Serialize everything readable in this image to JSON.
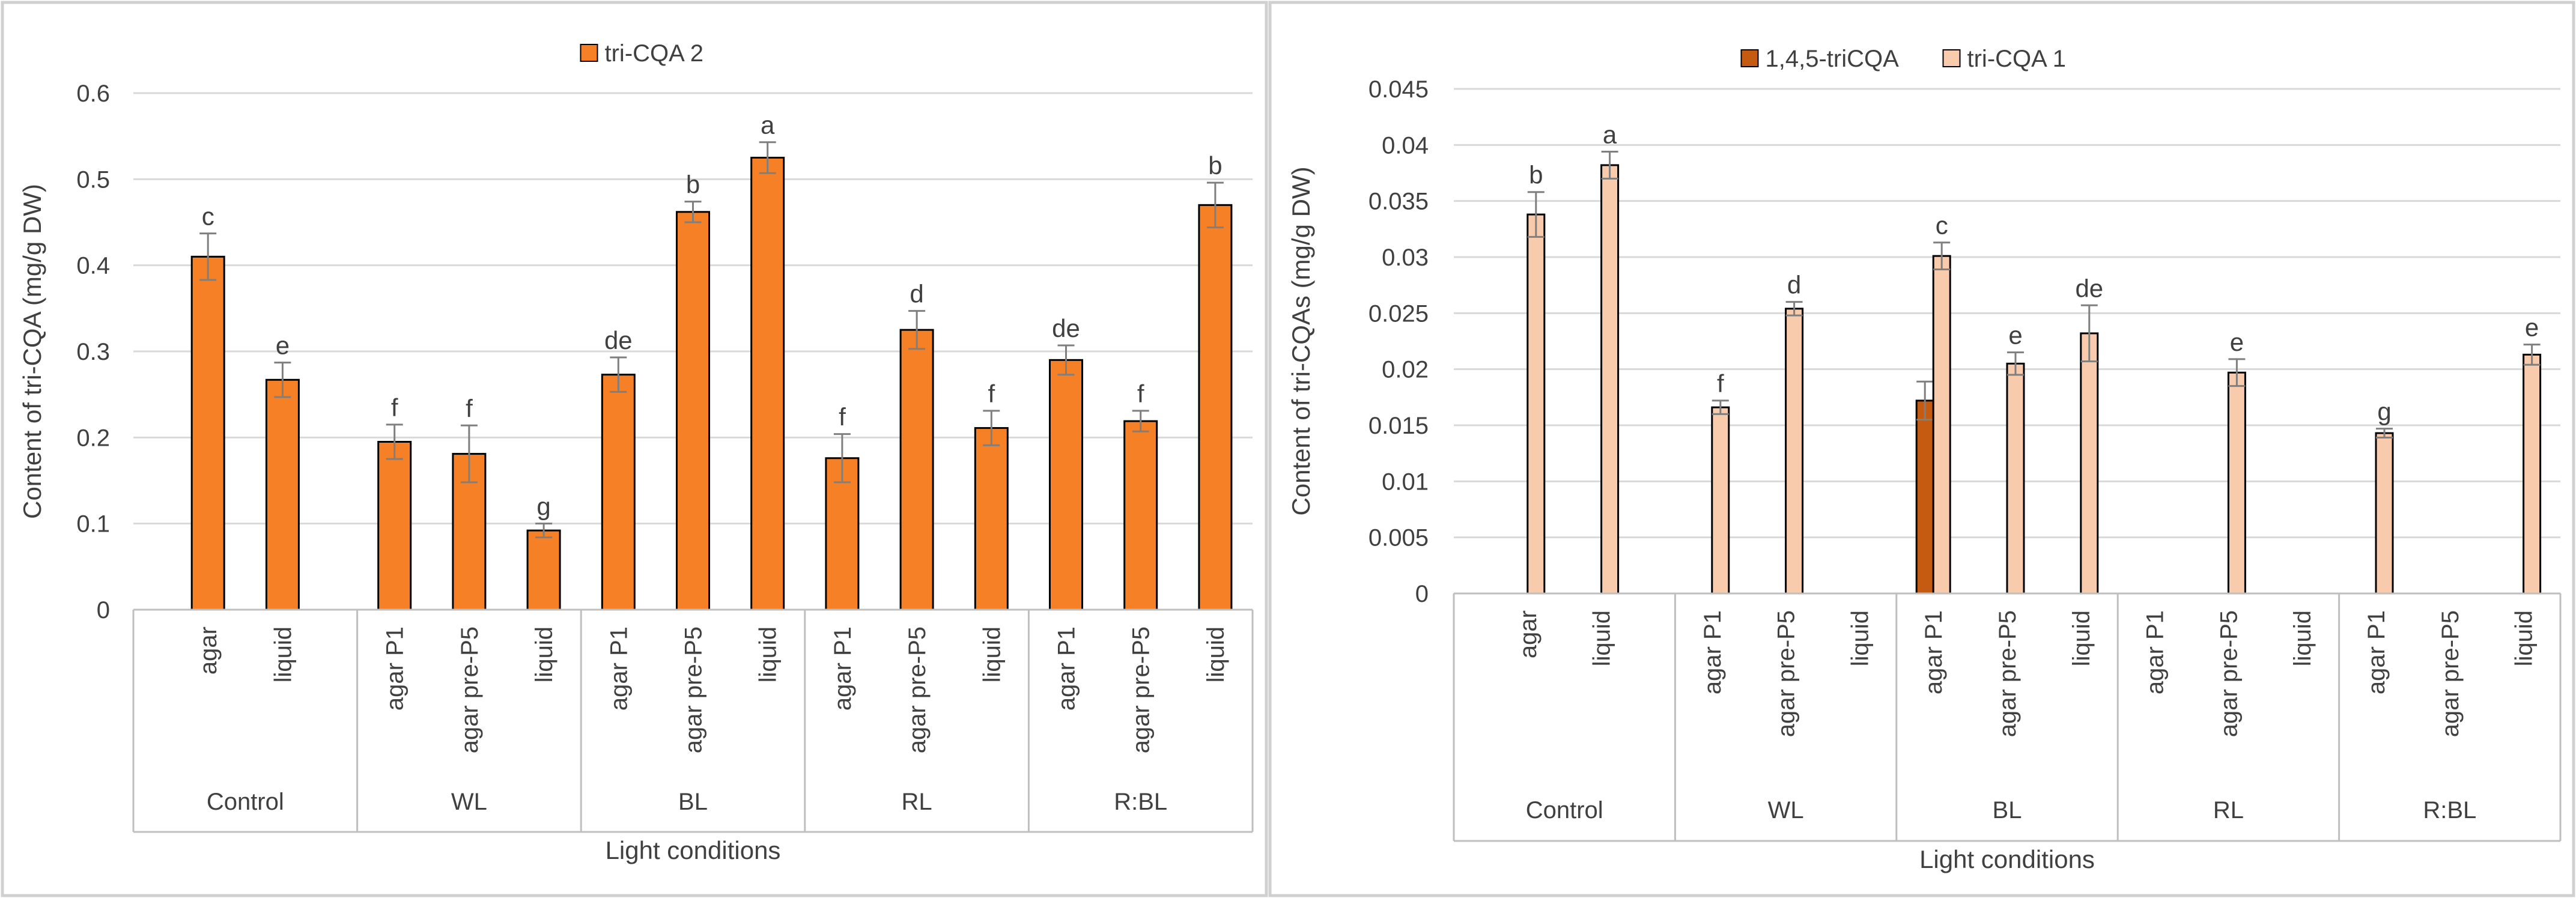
{
  "chart_data": [
    {
      "type": "bar",
      "title": "",
      "xlabel": "Light conditions",
      "ylabel": "Content of tri-CQA (mg/g DW)",
      "ylim": [
        0,
        0.6
      ],
      "yticks": [
        0,
        0.1,
        0.2,
        0.3,
        0.4,
        0.5,
        0.6
      ],
      "ytick_labels": [
        "0",
        "0.1",
        "0.2",
        "0.3",
        "0.4",
        "0.5",
        "0.6"
      ],
      "legend_position": "top-center",
      "grid": true,
      "groups": [
        {
          "name": "Control",
          "categories": [
            "agar",
            "liquid"
          ]
        },
        {
          "name": "WL",
          "categories": [
            "agar P1",
            "agar pre-P5",
            "liquid"
          ]
        },
        {
          "name": "BL",
          "categories": [
            "agar P1",
            "agar pre-P5",
            "liquid"
          ]
        },
        {
          "name": "RL",
          "categories": [
            "agar P1",
            "agar pre-P5",
            "liquid"
          ]
        },
        {
          "name": "R:BL",
          "categories": [
            "agar P1",
            "agar pre-P5",
            "liquid"
          ]
        }
      ],
      "series": [
        {
          "name": "tri-CQA 2",
          "color": "#F58025",
          "values": [
            0.41,
            0.267,
            0.195,
            0.181,
            0.092,
            0.273,
            0.462,
            0.525,
            0.176,
            0.325,
            0.211,
            0.29,
            0.219,
            0.47
          ],
          "errors": [
            0.027,
            0.02,
            0.02,
            0.033,
            0.008,
            0.02,
            0.012,
            0.018,
            0.028,
            0.022,
            0.02,
            0.017,
            0.012,
            0.026
          ],
          "labels": [
            "c",
            "e",
            "f",
            "f",
            "g",
            "de",
            "b",
            "a",
            "f",
            "d",
            "f",
            "de",
            "f",
            "b"
          ]
        }
      ]
    },
    {
      "type": "bar",
      "title": "",
      "xlabel": "Light conditions",
      "ylabel": "Content of tri-CQAs (mg/g DW)",
      "ylim": [
        0,
        0.045
      ],
      "yticks": [
        0,
        0.005,
        0.01,
        0.015,
        0.02,
        0.025,
        0.03,
        0.035,
        0.04,
        0.045
      ],
      "ytick_labels": [
        "0",
        "0.005",
        "0.01",
        "0.015",
        "0.02",
        "0.025",
        "0.03",
        "0.035",
        "0.04",
        "0.045"
      ],
      "legend_position": "top-center",
      "grid": true,
      "groups": [
        {
          "name": "Control",
          "categories": [
            "agar",
            "liquid"
          ]
        },
        {
          "name": "WL",
          "categories": [
            "agar P1",
            "agar pre-P5",
            "liquid"
          ]
        },
        {
          "name": "BL",
          "categories": [
            "agar P1",
            "agar pre-P5",
            "liquid"
          ]
        },
        {
          "name": "RL",
          "categories": [
            "agar P1",
            "agar pre-P5",
            "liquid"
          ]
        },
        {
          "name": "R:BL",
          "categories": [
            "agar P1",
            "agar pre-P5",
            "liquid"
          ]
        }
      ],
      "series": [
        {
          "name": "1,4,5-triCQA",
          "color": "#C55A11",
          "values": [
            null,
            null,
            null,
            null,
            null,
            0.0172,
            null,
            null,
            null,
            null,
            null,
            null,
            null,
            null
          ],
          "errors": [
            null,
            null,
            null,
            null,
            null,
            0.0017,
            null,
            null,
            null,
            null,
            null,
            null,
            null,
            null
          ],
          "labels": [
            null,
            null,
            null,
            null,
            null,
            null,
            null,
            null,
            null,
            null,
            null,
            null,
            null,
            null
          ]
        },
        {
          "name": "tri-CQA 1",
          "color": "#F8CBAD",
          "values": [
            0.0338,
            0.0382,
            0.0166,
            0.0254,
            null,
            0.0301,
            0.0205,
            0.0232,
            null,
            0.0197,
            null,
            0.0143,
            null,
            0.0213
          ],
          "errors": [
            0.002,
            0.0012,
            0.0006,
            0.0006,
            null,
            0.0012,
            0.001,
            0.0025,
            null,
            0.0012,
            null,
            0.0004,
            null,
            0.0009
          ],
          "labels": [
            "b",
            "a",
            "f",
            "d",
            null,
            "c",
            "e",
            "de",
            null,
            "e",
            null,
            "g",
            null,
            "e"
          ]
        }
      ]
    }
  ]
}
